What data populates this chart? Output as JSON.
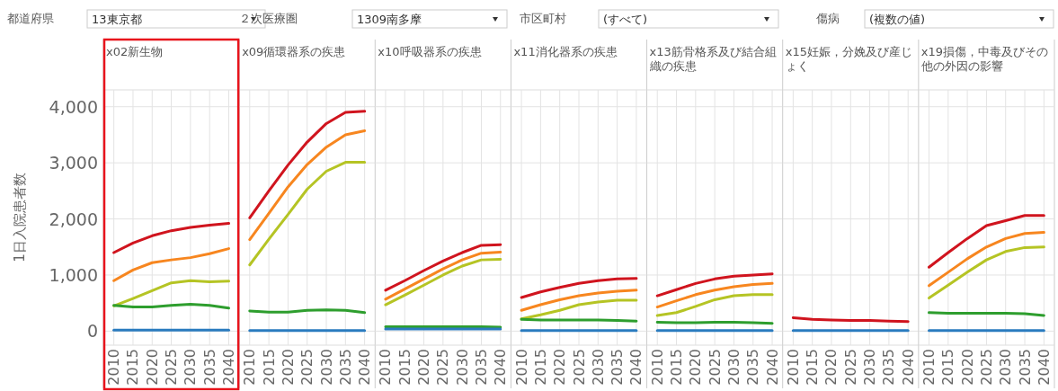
{
  "chart_data": [
    {
      "type": "line",
      "title": "x02新生物",
      "ylabel": "1日入院患者数",
      "annotations": [
        "都道府県",
        "13東京都",
        "２次医療圏",
        "1309南多摩",
        "市区町村",
        "(すべて)",
        "傷病",
        "(複数の値)"
      ],
      "x": [
        2010,
        2015,
        2020,
        2025,
        2030,
        2035,
        2040
      ],
      "xlim": [
        2007.5,
        2042.5
      ],
      "xticks": [
        2010,
        2015,
        2020,
        2025,
        2030,
        2035,
        2040
      ],
      "ylim": [
        -250,
        4300
      ],
      "yticks": [
        0,
        {
          "value": 1000,
          "label": "1,000"
        },
        {
          "value": 2000,
          "label": "2,000"
        },
        {
          "value": 3000,
          "label": "3,000"
        },
        {
          "value": 4000,
          "label": "4,000"
        }
      ],
      "grid": true,
      "series": [
        {
          "color": "#d0141e",
          "values": [
            1400,
            1570,
            1700,
            1790,
            1850,
            1890,
            1920
          ]
        },
        {
          "color": "#f7861f",
          "values": [
            900,
            1090,
            1220,
            1270,
            1310,
            1380,
            1470
          ]
        },
        {
          "color": "#b5c424",
          "values": [
            450,
            580,
            720,
            860,
            900,
            880,
            890
          ]
        },
        {
          "color": "#2e9e2e",
          "values": [
            460,
            430,
            430,
            460,
            480,
            460,
            410
          ]
        },
        {
          "color": "#2a7bbf",
          "values": [
            20,
            20,
            20,
            20,
            20,
            20,
            20
          ]
        }
      ]
    },
    {
      "type": "line",
      "title": "x09循環器系の疾患",
      "x": [
        2010,
        2015,
        2020,
        2025,
        2030,
        2035,
        2040
      ],
      "xlim": [
        2007.5,
        2042.5
      ],
      "xticks": [
        2010,
        2015,
        2020,
        2025,
        2030,
        2035,
        2040
      ],
      "ylim": [
        -250,
        4300
      ],
      "yticks": [
        {
          "value": 0,
          "label": null
        },
        {
          "value": 1000,
          "label": null
        },
        {
          "value": 2000,
          "label": null
        },
        {
          "value": 3000,
          "label": null
        },
        {
          "value": 4000,
          "label": null
        }
      ],
      "tick_labels": "x",
      "grid": true,
      "series": [
        {
          "color": "#d0141e",
          "values": [
            2020,
            2500,
            2960,
            3370,
            3700,
            3900,
            3920
          ]
        },
        {
          "color": "#f7861f",
          "values": [
            1630,
            2100,
            2570,
            2970,
            3280,
            3500,
            3570
          ]
        },
        {
          "color": "#b5c424",
          "values": [
            1180,
            1640,
            2080,
            2530,
            2850,
            3010,
            3010
          ]
        },
        {
          "color": "#2e9e2e",
          "values": [
            360,
            340,
            340,
            370,
            380,
            370,
            330
          ]
        },
        {
          "color": "#2a7bbf",
          "values": [
            10,
            10,
            10,
            10,
            10,
            10,
            10
          ]
        }
      ]
    },
    {
      "type": "line",
      "title": "x10呼吸器系の疾患",
      "x": [
        2010,
        2015,
        2020,
        2025,
        2030,
        2035,
        2040
      ],
      "xlim": [
        2007.5,
        2042.5
      ],
      "xticks": [
        2010,
        2015,
        2020,
        2025,
        2030,
        2035,
        2040
      ],
      "ylim": [
        -250,
        4300
      ],
      "yticks": [
        {
          "value": 0,
          "label": null
        },
        {
          "value": 1000,
          "label": null
        },
        {
          "value": 2000,
          "label": null
        },
        {
          "value": 3000,
          "label": null
        },
        {
          "value": 4000,
          "label": null
        }
      ],
      "tick_labels": "x",
      "grid": true,
      "series": [
        {
          "color": "#d0141e",
          "values": [
            730,
            900,
            1080,
            1250,
            1400,
            1530,
            1540
          ]
        },
        {
          "color": "#f7861f",
          "values": [
            570,
            750,
            930,
            1110,
            1270,
            1390,
            1410
          ]
        },
        {
          "color": "#b5c424",
          "values": [
            470,
            640,
            820,
            1000,
            1160,
            1270,
            1280
          ]
        },
        {
          "color": "#2e9e2e",
          "values": [
            80,
            80,
            80,
            80,
            80,
            80,
            70
          ]
        },
        {
          "color": "#2a7bbf",
          "values": [
            40,
            40,
            40,
            40,
            40,
            40,
            40
          ]
        }
      ]
    },
    {
      "type": "line",
      "title": "x11消化器系の疾患",
      "x": [
        2010,
        2015,
        2020,
        2025,
        2030,
        2035,
        2040
      ],
      "xlim": [
        2007.5,
        2042.5
      ],
      "xticks": [
        2010,
        2015,
        2020,
        2025,
        2030,
        2035,
        2040
      ],
      "ylim": [
        -250,
        4300
      ],
      "yticks": [
        {
          "value": 0,
          "label": null
        },
        {
          "value": 1000,
          "label": null
        },
        {
          "value": 2000,
          "label": null
        },
        {
          "value": 3000,
          "label": null
        },
        {
          "value": 4000,
          "label": null
        }
      ],
      "tick_labels": "x",
      "grid": true,
      "series": [
        {
          "color": "#d0141e",
          "values": [
            600,
            700,
            780,
            850,
            900,
            930,
            940
          ]
        },
        {
          "color": "#f7861f",
          "values": [
            370,
            470,
            560,
            630,
            680,
            710,
            730
          ]
        },
        {
          "color": "#b5c424",
          "values": [
            220,
            290,
            370,
            470,
            520,
            550,
            550
          ]
        },
        {
          "color": "#2e9e2e",
          "values": [
            210,
            200,
            200,
            200,
            200,
            190,
            180
          ]
        },
        {
          "color": "#2a7bbf",
          "values": [
            10,
            10,
            10,
            10,
            10,
            10,
            10
          ]
        }
      ]
    },
    {
      "type": "line",
      "title": "x13筋骨格系及び結合組織の疾患",
      "x": [
        2010,
        2015,
        2020,
        2025,
        2030,
        2035,
        2040
      ],
      "xlim": [
        2007.5,
        2042.5
      ],
      "xticks": [
        2010,
        2015,
        2020,
        2025,
        2030,
        2035,
        2040
      ],
      "ylim": [
        -250,
        4300
      ],
      "yticks": [
        {
          "value": 0,
          "label": null
        },
        {
          "value": 1000,
          "label": null
        },
        {
          "value": 2000,
          "label": null
        },
        {
          "value": 3000,
          "label": null
        },
        {
          "value": 4000,
          "label": null
        }
      ],
      "tick_labels": "x",
      "grid": true,
      "series": [
        {
          "color": "#d0141e",
          "values": [
            630,
            740,
            850,
            930,
            980,
            1000,
            1020
          ]
        },
        {
          "color": "#f7861f",
          "values": [
            430,
            540,
            650,
            730,
            790,
            830,
            850
          ]
        },
        {
          "color": "#b5c424",
          "values": [
            280,
            330,
            440,
            560,
            630,
            650,
            650
          ]
        },
        {
          "color": "#2e9e2e",
          "values": [
            160,
            150,
            150,
            160,
            160,
            150,
            140
          ]
        },
        {
          "color": "#2a7bbf",
          "values": [
            10,
            10,
            10,
            10,
            10,
            10,
            10
          ]
        }
      ]
    },
    {
      "type": "line",
      "title": "x15妊娠，分娩及び産じょく",
      "x": [
        2010,
        2015,
        2020,
        2025,
        2030,
        2035,
        2040
      ],
      "xlim": [
        2007.5,
        2042.5
      ],
      "xticks": [
        2010,
        2015,
        2020,
        2025,
        2030,
        2035,
        2040
      ],
      "ylim": [
        -250,
        4300
      ],
      "yticks": [
        {
          "value": 0,
          "label": null
        },
        {
          "value": 1000,
          "label": null
        },
        {
          "value": 2000,
          "label": null
        },
        {
          "value": 3000,
          "label": null
        },
        {
          "value": 4000,
          "label": null
        }
      ],
      "tick_labels": "x",
      "grid": true,
      "series": [
        {
          "color": "#d0141e",
          "values": [
            240,
            210,
            200,
            190,
            190,
            180,
            170
          ]
        },
        {
          "color": "#2a7bbf",
          "values": [
            10,
            10,
            10,
            10,
            10,
            10,
            10
          ]
        }
      ]
    },
    {
      "type": "line",
      "title": "x19損傷，中毒及びその他の外因の影響",
      "x": [
        2010,
        2015,
        2020,
        2025,
        2030,
        2035,
        2040
      ],
      "xlim": [
        2007.5,
        2042.5
      ],
      "xticks": [
        2010,
        2015,
        2020,
        2025,
        2030,
        2035,
        2040
      ],
      "ylim": [
        -250,
        4300
      ],
      "yticks": [
        {
          "value": 0,
          "label": null
        },
        {
          "value": 1000,
          "label": null
        },
        {
          "value": 2000,
          "label": null
        },
        {
          "value": 3000,
          "label": null
        },
        {
          "value": 4000,
          "label": null
        }
      ],
      "tick_labels": "x",
      "grid": true,
      "series": [
        {
          "color": "#d0141e",
          "values": [
            1140,
            1400,
            1650,
            1880,
            1970,
            2060,
            2060
          ]
        },
        {
          "color": "#f7861f",
          "values": [
            810,
            1050,
            1290,
            1500,
            1650,
            1740,
            1760
          ]
        },
        {
          "color": "#b5c424",
          "values": [
            590,
            820,
            1050,
            1270,
            1420,
            1490,
            1500
          ]
        },
        {
          "color": "#2e9e2e",
          "values": [
            330,
            320,
            320,
            320,
            320,
            310,
            280
          ]
        },
        {
          "color": "#2a7bbf",
          "values": [
            10,
            10,
            10,
            10,
            10,
            10,
            10
          ]
        }
      ]
    }
  ]
}
